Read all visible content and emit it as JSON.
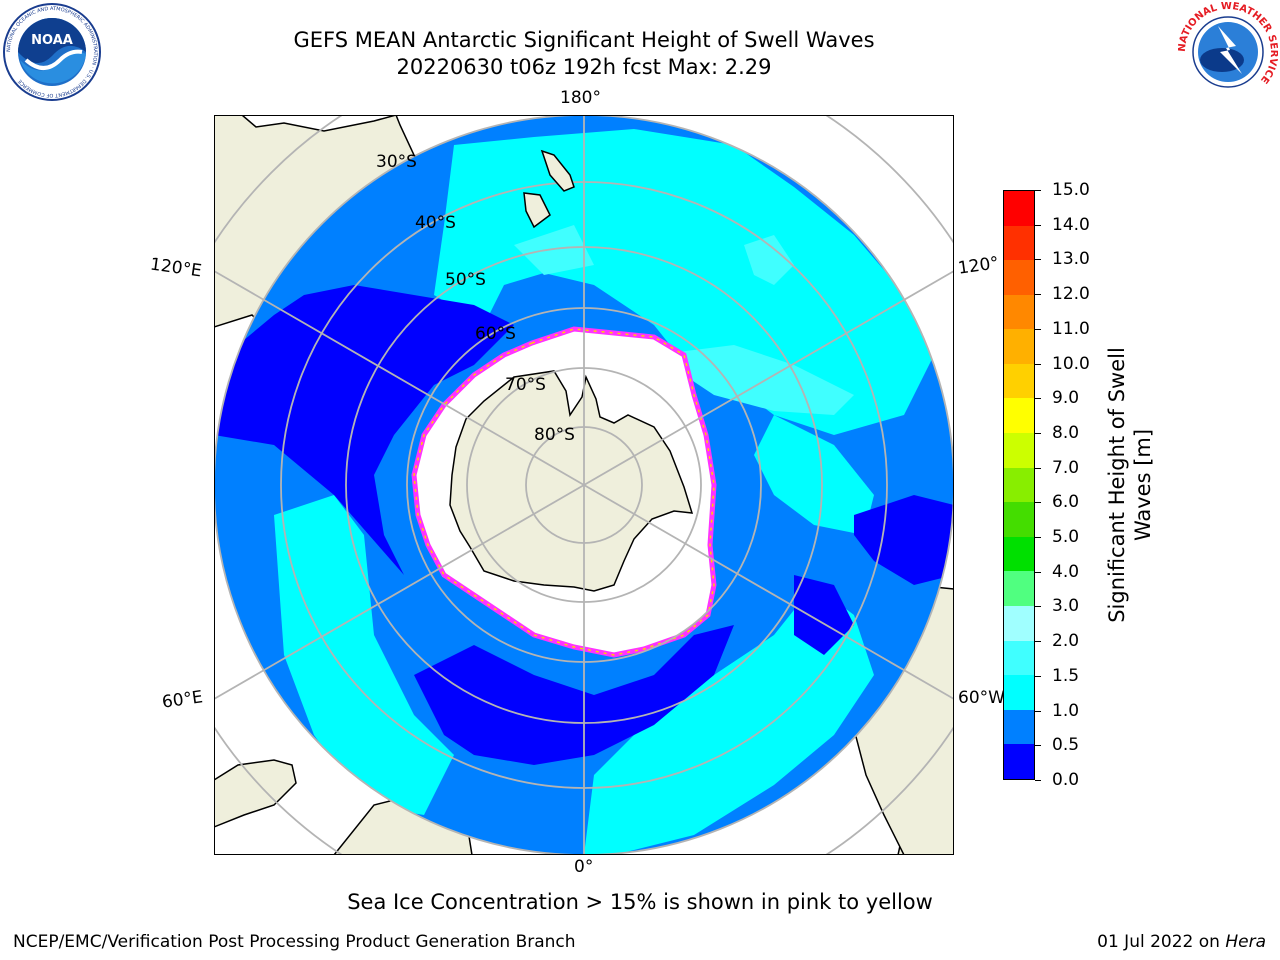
{
  "header": {
    "title_line1": "GEFS MEAN Antarctic Significant Height of Swell Waves",
    "title_line2": "20220630 t06z 192h fcst   Max: 2.29"
  },
  "logos": {
    "left": {
      "icon": "noaa-logo",
      "text": "NOAA",
      "ring_text": "NATIONAL OCEANIC AND ATMOSPHERIC ADMINISTRATION · U.S. DEPARTMENT OF COMMERCE"
    },
    "right": {
      "icon": "national-weather-service-logo",
      "ring_text": "NATIONAL WEATHER SERVICE"
    }
  },
  "map": {
    "projection": "south polar stereographic",
    "longitude_labels": {
      "top": "180°",
      "bottom": "0°",
      "upper_left": "120°E",
      "upper_right": "120°",
      "lower_left": "60°E",
      "lower_right": "60°W"
    },
    "latitude_labels": [
      "30°S",
      "40°S",
      "50°S",
      "60°S",
      "70°S",
      "80°S"
    ],
    "colors": {
      "land": "#efefdc",
      "open_water": "#ffffff",
      "gridline": "#b4b4b4",
      "sea_ice_edge": "#ff33ff",
      "sea_ice_inner": "#ffd200"
    }
  },
  "colorbar": {
    "title": "Significant Height of Swell Waves [m]",
    "title_line1": "Significant Height of Swell",
    "title_line2": "Waves [m]",
    "tick_labels": [
      "0.0",
      "0.5",
      "1.0",
      "1.5",
      "2.0",
      "3.0",
      "4.0",
      "5.0",
      "6.0",
      "7.0",
      "8.0",
      "9.0",
      "10.0",
      "11.0",
      "12.0",
      "13.0",
      "14.0",
      "15.0"
    ],
    "colors": [
      "#0000ff",
      "#0080ff",
      "#00ffff",
      "#40ffff",
      "#a0ffff",
      "#50ff80",
      "#00e000",
      "#44dd00",
      "#88ee00",
      "#ccff00",
      "#ffff00",
      "#ffd000",
      "#ffb000",
      "#ff8800",
      "#ff6000",
      "#ff3000",
      "#ff0000"
    ]
  },
  "notes": {
    "ice": "Sea Ice Concentration > 15% is shown in pink to yellow",
    "footer_left": "NCEP/EMC/Verification Post Processing Product Generation Branch",
    "footer_date": "01 Jul 2022 on ",
    "footer_machine": "Hera"
  }
}
